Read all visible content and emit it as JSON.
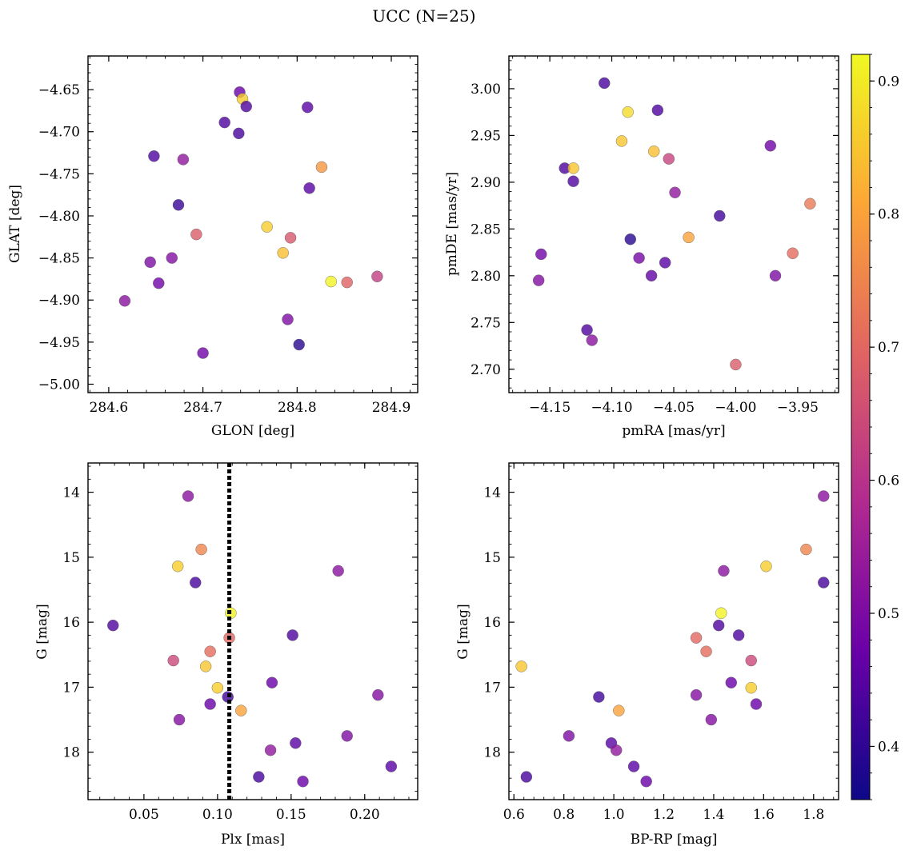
{
  "figure": {
    "title": "UCC (N=25)",
    "colorbar_ticks": [
      0.4,
      0.5,
      0.6,
      0.7,
      0.8,
      0.9
    ],
    "colorbar_range": [
      0.36,
      0.92
    ],
    "colormap": [
      "#0d0887",
      "#6a00a8",
      "#b12a90",
      "#e16462",
      "#fca636",
      "#f0f921"
    ],
    "marker_opacity": 0.8
  },
  "chart_data": [
    {
      "type": "scatter",
      "id": "glon-glat",
      "title": "",
      "xlabel": "GLON [deg]",
      "ylabel": "GLAT [deg]",
      "xlim": [
        284.578,
        284.928
      ],
      "ylim": [
        -5.01,
        -4.61
      ],
      "y_inverted": false,
      "xticks": [
        284.6,
        284.7,
        284.8,
        284.9
      ],
      "xtick_labels": [
        "284.6",
        "284.7",
        "284.8",
        "284.9"
      ],
      "yticks": [
        -5.0,
        -4.95,
        -4.9,
        -4.85,
        -4.8,
        -4.75,
        -4.7,
        -4.65
      ],
      "ytick_labels": [
        "−5.00",
        "−4.95",
        "−4.90",
        "−4.85",
        "−4.80",
        "−4.75",
        "−4.70",
        "−4.65"
      ],
      "points": [
        {
          "x": 284.739,
          "y": -4.653,
          "c": 0.47
        },
        {
          "x": 284.742,
          "y": -4.661,
          "c": 0.86
        },
        {
          "x": 284.746,
          "y": -4.67,
          "c": 0.44
        },
        {
          "x": 284.811,
          "y": -4.671,
          "c": 0.45
        },
        {
          "x": 284.723,
          "y": -4.689,
          "c": 0.44
        },
        {
          "x": 284.738,
          "y": -4.702,
          "c": 0.43
        },
        {
          "x": 284.648,
          "y": -4.729,
          "c": 0.44
        },
        {
          "x": 284.679,
          "y": -4.733,
          "c": 0.53
        },
        {
          "x": 284.826,
          "y": -4.742,
          "c": 0.78
        },
        {
          "x": 284.813,
          "y": -4.767,
          "c": 0.45
        },
        {
          "x": 284.674,
          "y": -4.787,
          "c": 0.41
        },
        {
          "x": 284.768,
          "y": -4.813,
          "c": 0.86
        },
        {
          "x": 284.693,
          "y": -4.822,
          "c": 0.68
        },
        {
          "x": 284.793,
          "y": -4.826,
          "c": 0.67
        },
        {
          "x": 284.785,
          "y": -4.844,
          "c": 0.84
        },
        {
          "x": 284.667,
          "y": -4.85,
          "c": 0.51
        },
        {
          "x": 284.644,
          "y": -4.855,
          "c": 0.5
        },
        {
          "x": 284.836,
          "y": -4.878,
          "c": 0.91
        },
        {
          "x": 284.853,
          "y": -4.879,
          "c": 0.69
        },
        {
          "x": 284.653,
          "y": -4.88,
          "c": 0.48
        },
        {
          "x": 284.885,
          "y": -4.872,
          "c": 0.62
        },
        {
          "x": 284.617,
          "y": -4.901,
          "c": 0.52
        },
        {
          "x": 284.79,
          "y": -4.923,
          "c": 0.5
        },
        {
          "x": 284.802,
          "y": -4.953,
          "c": 0.39
        },
        {
          "x": 284.7,
          "y": -4.963,
          "c": 0.48
        }
      ]
    },
    {
      "type": "scatter",
      "id": "pm",
      "title": "",
      "xlabel": "pmRA [mas/yr]",
      "ylabel": "pmDE [mas/yr]",
      "xlim": [
        -4.183,
        -3.917
      ],
      "ylim": [
        2.675,
        3.035
      ],
      "y_inverted": false,
      "xticks": [
        -4.15,
        -4.1,
        -4.05,
        -4.0,
        -3.95
      ],
      "xtick_labels": [
        "−4.15",
        "−4.10",
        "−4.05",
        "−4.00",
        "−3.95"
      ],
      "yticks": [
        2.7,
        2.75,
        2.8,
        2.85,
        2.9,
        2.95,
        3.0
      ],
      "ytick_labels": [
        "2.70",
        "2.75",
        "2.80",
        "2.85",
        "2.90",
        "2.95",
        "3.00"
      ],
      "points": [
        {
          "x": -4.106,
          "y": 3.006,
          "c": 0.43
        },
        {
          "x": -4.087,
          "y": 2.975,
          "c": 0.88
        },
        {
          "x": -4.063,
          "y": 2.977,
          "c": 0.44
        },
        {
          "x": -4.092,
          "y": 2.944,
          "c": 0.85
        },
        {
          "x": -4.066,
          "y": 2.933,
          "c": 0.84
        },
        {
          "x": -4.054,
          "y": 2.925,
          "c": 0.63
        },
        {
          "x": -3.972,
          "y": 2.939,
          "c": 0.48
        },
        {
          "x": -4.138,
          "y": 2.915,
          "c": 0.44
        },
        {
          "x": -4.131,
          "y": 2.915,
          "c": 0.85
        },
        {
          "x": -4.131,
          "y": 2.901,
          "c": 0.44
        },
        {
          "x": -4.049,
          "y": 2.889,
          "c": 0.53
        },
        {
          "x": -3.94,
          "y": 2.877,
          "c": 0.73
        },
        {
          "x": -4.013,
          "y": 2.864,
          "c": 0.42
        },
        {
          "x": -4.085,
          "y": 2.839,
          "c": 0.39
        },
        {
          "x": -4.038,
          "y": 2.841,
          "c": 0.8
        },
        {
          "x": -3.954,
          "y": 2.824,
          "c": 0.71
        },
        {
          "x": -4.157,
          "y": 2.823,
          "c": 0.48
        },
        {
          "x": -4.078,
          "y": 2.819,
          "c": 0.49
        },
        {
          "x": -4.057,
          "y": 2.814,
          "c": 0.45
        },
        {
          "x": -4.068,
          "y": 2.8,
          "c": 0.46
        },
        {
          "x": -3.968,
          "y": 2.8,
          "c": 0.5
        },
        {
          "x": -4.159,
          "y": 2.795,
          "c": 0.51
        },
        {
          "x": -4.12,
          "y": 2.742,
          "c": 0.44
        },
        {
          "x": -4.116,
          "y": 2.731,
          "c": 0.52
        },
        {
          "x": -4.0,
          "y": 2.705,
          "c": 0.68
        }
      ]
    },
    {
      "type": "scatter",
      "id": "plx-g",
      "title": "",
      "xlabel": "Plx [mas]",
      "ylabel": "G [mag]",
      "xlim": [
        0.012,
        0.236
      ],
      "ylim": [
        18.73,
        13.55
      ],
      "y_inverted": true,
      "xticks": [
        0.05,
        0.1,
        0.15,
        0.2
      ],
      "xtick_labels": [
        "0.05",
        "0.10",
        "0.15",
        "0.20"
      ],
      "yticks": [
        14,
        15,
        16,
        17,
        18
      ],
      "ytick_labels": [
        "14",
        "15",
        "16",
        "17",
        "18"
      ],
      "vline": {
        "x": 0.108,
        "style": "dotted",
        "color": "#000000"
      },
      "points": [
        {
          "x": 0.08,
          "y": 14.06,
          "c": 0.52
        },
        {
          "x": 0.089,
          "y": 14.88,
          "c": 0.75
        },
        {
          "x": 0.073,
          "y": 15.14,
          "c": 0.86
        },
        {
          "x": 0.182,
          "y": 15.21,
          "c": 0.52
        },
        {
          "x": 0.085,
          "y": 15.39,
          "c": 0.43
        },
        {
          "x": 0.109,
          "y": 15.86,
          "c": 0.91
        },
        {
          "x": 0.029,
          "y": 16.05,
          "c": 0.44
        },
        {
          "x": 0.151,
          "y": 16.2,
          "c": 0.44
        },
        {
          "x": 0.108,
          "y": 16.24,
          "c": 0.7
        },
        {
          "x": 0.095,
          "y": 16.45,
          "c": 0.71
        },
        {
          "x": 0.07,
          "y": 16.59,
          "c": 0.64
        },
        {
          "x": 0.092,
          "y": 16.68,
          "c": 0.85
        },
        {
          "x": 0.137,
          "y": 16.93,
          "c": 0.47
        },
        {
          "x": 0.1,
          "y": 17.01,
          "c": 0.86
        },
        {
          "x": 0.209,
          "y": 17.12,
          "c": 0.51
        },
        {
          "x": 0.107,
          "y": 17.15,
          "c": 0.42
        },
        {
          "x": 0.095,
          "y": 17.26,
          "c": 0.47
        },
        {
          "x": 0.116,
          "y": 17.36,
          "c": 0.8
        },
        {
          "x": 0.074,
          "y": 17.5,
          "c": 0.51
        },
        {
          "x": 0.188,
          "y": 17.75,
          "c": 0.5
        },
        {
          "x": 0.153,
          "y": 17.86,
          "c": 0.45
        },
        {
          "x": 0.136,
          "y": 17.97,
          "c": 0.53
        },
        {
          "x": 0.218,
          "y": 18.22,
          "c": 0.45
        },
        {
          "x": 0.128,
          "y": 18.38,
          "c": 0.43
        },
        {
          "x": 0.158,
          "y": 18.45,
          "c": 0.47
        }
      ]
    },
    {
      "type": "scatter",
      "id": "color-mag",
      "title": "",
      "xlabel": "BP-RP [mag]",
      "ylabel": "G [mag]",
      "xlim": [
        0.58,
        1.9
      ],
      "ylim": [
        18.73,
        13.55
      ],
      "y_inverted": true,
      "xticks": [
        0.6,
        0.8,
        1.0,
        1.2,
        1.4,
        1.6,
        1.8
      ],
      "xtick_labels": [
        "0.6",
        "0.8",
        "1.0",
        "1.2",
        "1.4",
        "1.6",
        "1.8"
      ],
      "yticks": [
        14,
        15,
        16,
        17,
        18
      ],
      "ytick_labels": [
        "14",
        "15",
        "16",
        "17",
        "18"
      ],
      "points": [
        {
          "x": 1.84,
          "y": 14.06,
          "c": 0.52
        },
        {
          "x": 1.77,
          "y": 14.88,
          "c": 0.75
        },
        {
          "x": 1.61,
          "y": 15.14,
          "c": 0.86
        },
        {
          "x": 1.44,
          "y": 15.21,
          "c": 0.52
        },
        {
          "x": 1.84,
          "y": 15.39,
          "c": 0.43
        },
        {
          "x": 1.43,
          "y": 15.86,
          "c": 0.91
        },
        {
          "x": 1.42,
          "y": 16.05,
          "c": 0.44
        },
        {
          "x": 1.5,
          "y": 16.2,
          "c": 0.44
        },
        {
          "x": 1.33,
          "y": 16.24,
          "c": 0.7
        },
        {
          "x": 1.37,
          "y": 16.45,
          "c": 0.71
        },
        {
          "x": 1.55,
          "y": 16.59,
          "c": 0.64
        },
        {
          "x": 0.63,
          "y": 16.68,
          "c": 0.85
        },
        {
          "x": 1.47,
          "y": 16.93,
          "c": 0.47
        },
        {
          "x": 1.55,
          "y": 17.01,
          "c": 0.86
        },
        {
          "x": 1.33,
          "y": 17.12,
          "c": 0.51
        },
        {
          "x": 0.94,
          "y": 17.15,
          "c": 0.42
        },
        {
          "x": 1.57,
          "y": 17.26,
          "c": 0.47
        },
        {
          "x": 1.02,
          "y": 17.36,
          "c": 0.8
        },
        {
          "x": 1.39,
          "y": 17.5,
          "c": 0.51
        },
        {
          "x": 0.82,
          "y": 17.75,
          "c": 0.5
        },
        {
          "x": 0.99,
          "y": 17.86,
          "c": 0.45
        },
        {
          "x": 1.01,
          "y": 17.97,
          "c": 0.53
        },
        {
          "x": 1.08,
          "y": 18.22,
          "c": 0.45
        },
        {
          "x": 0.65,
          "y": 18.38,
          "c": 0.43
        },
        {
          "x": 1.13,
          "y": 18.45,
          "c": 0.47
        }
      ]
    }
  ]
}
